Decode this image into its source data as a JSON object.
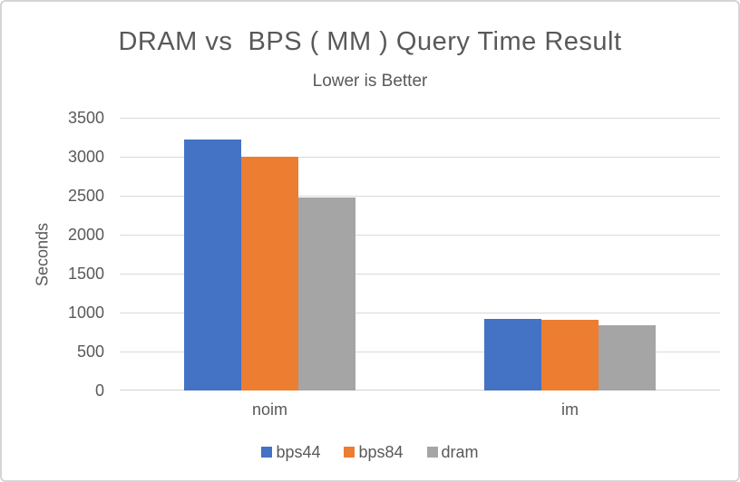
{
  "frame": {
    "background": "#FFFFFF",
    "border_color": "#D5D5D5"
  },
  "chart_data": {
    "type": "bar",
    "title": "DRAM vs  BPS ( MM ) Query Time Result",
    "subtitle": "Lower is Better",
    "ylabel": "Seconds",
    "xlabel": "",
    "categories": [
      "noim",
      "im"
    ],
    "series": [
      {
        "name": "bps44",
        "color": "#4472C4",
        "values": [
          3220,
          920
        ]
      },
      {
        "name": "bps84",
        "color": "#ED7D31",
        "values": [
          3000,
          910
        ]
      },
      {
        "name": "dram",
        "color": "#A5A5A5",
        "values": [
          2480,
          840
        ]
      }
    ],
    "ylim": [
      0,
      3500
    ],
    "yticks": [
      0,
      500,
      1000,
      1500,
      2000,
      2500,
      3000,
      3500
    ],
    "grid": true,
    "legend_position": "bottom",
    "colors": {
      "text": "#595959",
      "gridline": "#D9D9D9",
      "axis_line": "#D2D2D2"
    }
  }
}
